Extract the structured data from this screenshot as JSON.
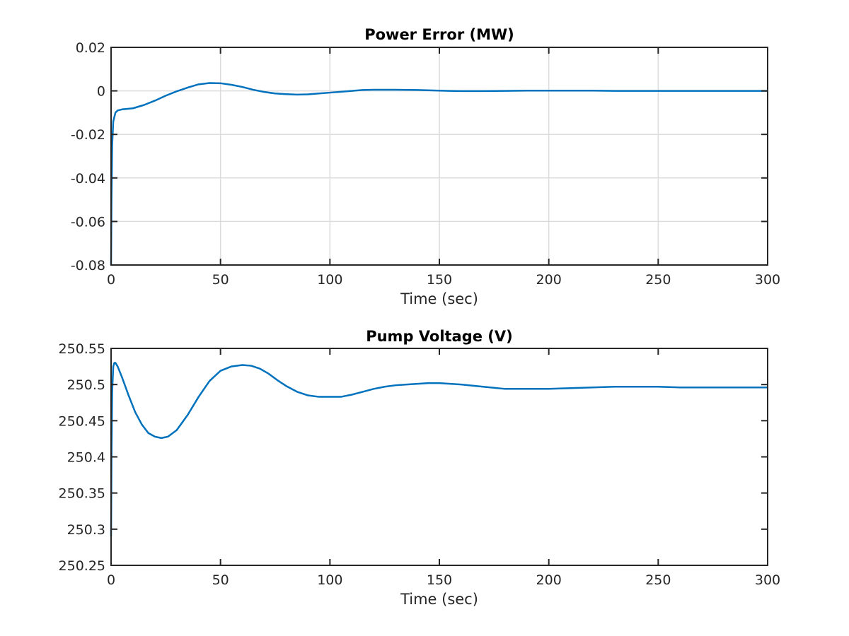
{
  "chart_data": [
    {
      "type": "line",
      "title": "Power Error (MW)",
      "xlabel": "Time (sec)",
      "ylabel": "",
      "xlim": [
        0,
        300
      ],
      "ylim": [
        -0.08,
        0.02
      ],
      "xticks": [
        0,
        50,
        100,
        150,
        200,
        250,
        300
      ],
      "xtick_labels": [
        "0",
        "50",
        "100",
        "150",
        "200",
        "250",
        "300"
      ],
      "yticks": [
        -0.08,
        -0.06,
        -0.04,
        -0.02,
        0,
        0.02
      ],
      "ytick_labels": [
        "-0.08",
        "-0.06",
        "-0.04",
        "-0.02",
        "0",
        "0.02"
      ],
      "grid": true,
      "color": "#0072bd",
      "series": [
        {
          "x": [
            0,
            0.2,
            0.5,
            1,
            2,
            3,
            5,
            10,
            15,
            20,
            25,
            30,
            35,
            40,
            45,
            50,
            55,
            60,
            65,
            70,
            75,
            80,
            85,
            90,
            95,
            100,
            105,
            110,
            115,
            120,
            130,
            140,
            150,
            160,
            170,
            180,
            190,
            200,
            210,
            220,
            230,
            240,
            250,
            260,
            270,
            280,
            290,
            300
          ],
          "y": [
            -0.08,
            -0.05,
            -0.025,
            -0.014,
            -0.01,
            -0.009,
            -0.0085,
            -0.008,
            -0.0065,
            -0.0045,
            -0.0022,
            -0.0002,
            0.0015,
            0.003,
            0.0036,
            0.0035,
            0.0028,
            0.0018,
            0.0005,
            -0.0005,
            -0.0012,
            -0.0015,
            -0.0017,
            -0.0016,
            -0.0012,
            -0.0008,
            -0.0004,
            0.0,
            0.0004,
            0.0005,
            0.0005,
            0.0004,
            0.0001,
            -0.0001,
            -0.0001,
            0.0,
            0.0001,
            0.0001,
            0.0001,
            0.0001,
            0.0,
            0.0,
            0.0,
            0.0,
            0.0,
            0.0,
            0.0,
            0.0
          ]
        }
      ]
    },
    {
      "type": "line",
      "title": "Pump Voltage (V)",
      "xlabel": "Time (sec)",
      "ylabel": "",
      "xlim": [
        0,
        300
      ],
      "ylim": [
        250.25,
        250.55
      ],
      "xticks": [
        0,
        50,
        100,
        150,
        200,
        250,
        300
      ],
      "xtick_labels": [
        "0",
        "50",
        "100",
        "150",
        "200",
        "250",
        "300"
      ],
      "yticks": [
        250.25,
        250.3,
        250.35,
        250.4,
        250.45,
        250.5,
        250.55
      ],
      "ytick_labels": [
        "250.25",
        "250.3",
        "250.35",
        "250.4",
        "250.45",
        "250.5",
        "250.55"
      ],
      "grid": false,
      "color": "#0072bd",
      "series": [
        {
          "x": [
            0,
            0.2,
            0.5,
            1,
            1.5,
            2,
            3,
            5,
            8,
            11,
            14,
            17,
            20,
            23,
            26,
            30,
            35,
            40,
            45,
            50,
            55,
            60,
            64,
            68,
            72,
            76,
            80,
            85,
            90,
            95,
            100,
            105,
            110,
            115,
            120,
            125,
            130,
            135,
            140,
            145,
            150,
            155,
            160,
            170,
            180,
            190,
            200,
            210,
            220,
            230,
            240,
            250,
            260,
            270,
            280,
            290,
            300
          ],
          "y": [
            250.29,
            250.4,
            250.49,
            250.525,
            250.53,
            250.53,
            250.525,
            250.51,
            250.485,
            250.462,
            250.445,
            250.433,
            250.428,
            250.426,
            250.428,
            250.437,
            250.458,
            250.483,
            250.505,
            250.519,
            250.525,
            250.527,
            250.526,
            250.522,
            250.515,
            250.506,
            250.498,
            250.49,
            250.485,
            250.483,
            250.483,
            250.483,
            250.486,
            250.49,
            250.494,
            250.497,
            250.499,
            250.5,
            250.501,
            250.502,
            250.502,
            250.501,
            250.5,
            250.497,
            250.494,
            250.494,
            250.494,
            250.495,
            250.496,
            250.497,
            250.497,
            250.497,
            250.496,
            250.496,
            250.496,
            250.496,
            250.496
          ]
        }
      ]
    }
  ]
}
